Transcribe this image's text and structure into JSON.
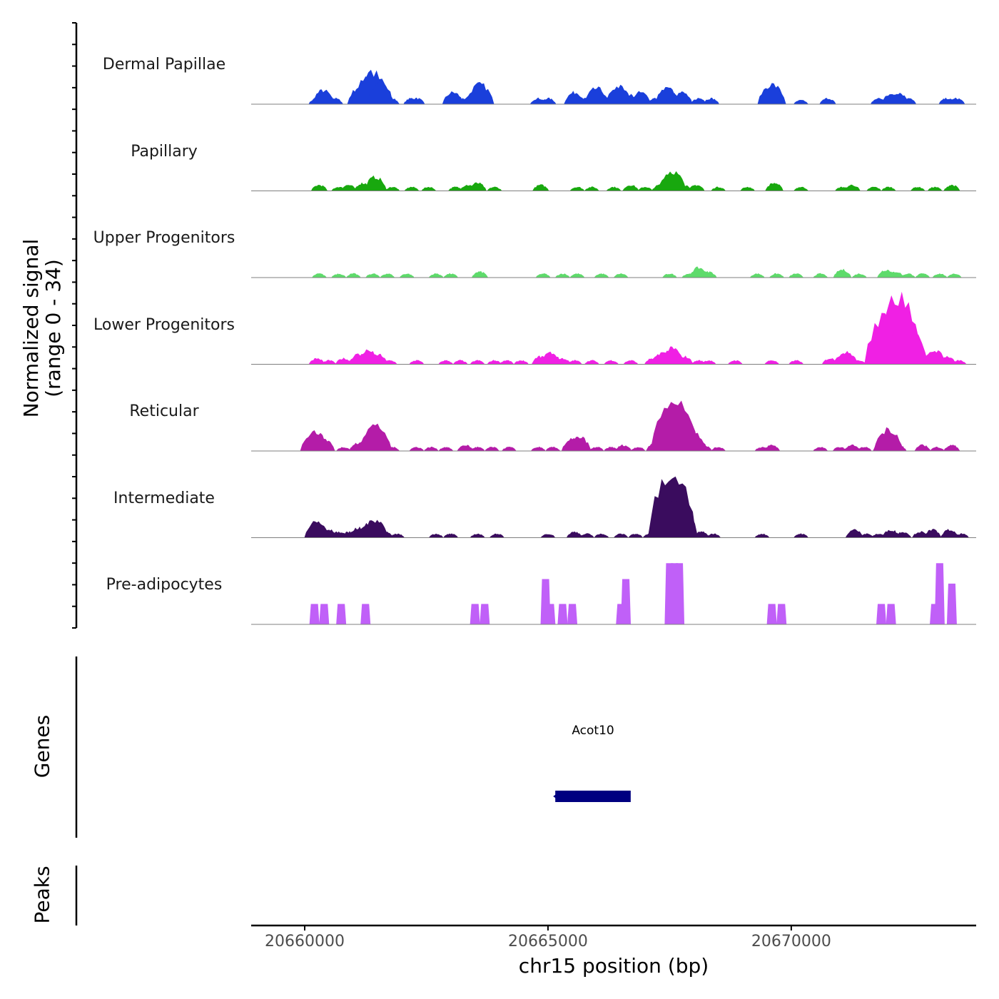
{
  "chart_data": {
    "type": "area",
    "title": "",
    "xlabel": "chr15 position (bp)",
    "ylabel": "Normalized signal",
    "ylabel_range": "(range 0 - 34)",
    "ylim": [
      0,
      34
    ],
    "xlim": [
      20658900,
      20673800
    ],
    "x_ticks": [
      20660000,
      20665000,
      20670000
    ],
    "x_tick_labels": [
      "20660000",
      "20665000",
      "20670000"
    ],
    "tracks": [
      {
        "name": "Dermal Papillae",
        "color": "#1A3FDB",
        "peaks": [
          [
            20660250,
            3
          ],
          [
            20660380,
            7
          ],
          [
            20660620,
            3
          ],
          [
            20661150,
            9
          ],
          [
            20661300,
            13
          ],
          [
            20661420,
            16
          ],
          [
            20661550,
            10
          ],
          [
            20661780,
            3
          ],
          [
            20662200,
            3
          ],
          [
            20662300,
            3
          ],
          [
            20663050,
            6
          ],
          [
            20663250,
            3
          ],
          [
            20663450,
            5
          ],
          [
            20663600,
            10
          ],
          [
            20664800,
            3
          ],
          [
            20665000,
            3
          ],
          [
            20665550,
            6
          ],
          [
            20665800,
            3
          ],
          [
            20666000,
            8
          ],
          [
            20666250,
            3
          ],
          [
            20666450,
            9
          ],
          [
            20666650,
            5
          ],
          [
            20666900,
            6
          ],
          [
            20667200,
            3
          ],
          [
            20667450,
            8
          ],
          [
            20667600,
            5
          ],
          [
            20667750,
            6
          ],
          [
            20668100,
            3
          ],
          [
            20668350,
            3
          ],
          [
            20669600,
            10
          ],
          [
            20670200,
            2
          ],
          [
            20670750,
            3
          ],
          [
            20671800,
            3
          ],
          [
            20672050,
            5
          ],
          [
            20672200,
            6
          ],
          [
            20672400,
            3
          ],
          [
            20673200,
            3
          ],
          [
            20673400,
            3
          ]
        ]
      },
      {
        "name": "Papillary",
        "color": "#18A80E",
        "peaks": [
          [
            20660300,
            3
          ],
          [
            20660700,
            2
          ],
          [
            20660900,
            3
          ],
          [
            20661200,
            4
          ],
          [
            20661450,
            7
          ],
          [
            20661800,
            2
          ],
          [
            20662200,
            2
          ],
          [
            20662550,
            2
          ],
          [
            20663100,
            2
          ],
          [
            20663350,
            3
          ],
          [
            20663550,
            4
          ],
          [
            20663900,
            2
          ],
          [
            20664850,
            3
          ],
          [
            20665600,
            2
          ],
          [
            20665900,
            2
          ],
          [
            20666350,
            2
          ],
          [
            20666700,
            3
          ],
          [
            20667000,
            2
          ],
          [
            20667300,
            3
          ],
          [
            20667550,
            10
          ],
          [
            20667800,
            3
          ],
          [
            20668050,
            3
          ],
          [
            20668500,
            2
          ],
          [
            20669100,
            2
          ],
          [
            20669650,
            4
          ],
          [
            20670200,
            2
          ],
          [
            20671050,
            2
          ],
          [
            20671250,
            3
          ],
          [
            20671700,
            2
          ],
          [
            20672000,
            2
          ],
          [
            20672600,
            2
          ],
          [
            20672950,
            2
          ],
          [
            20673300,
            3
          ]
        ]
      },
      {
        "name": "Upper Progenitors",
        "color": "#5EDB6B",
        "peaks": [
          [
            20660300,
            2
          ],
          [
            20660700,
            2
          ],
          [
            20661000,
            2
          ],
          [
            20661400,
            2
          ],
          [
            20661700,
            2
          ],
          [
            20662100,
            2
          ],
          [
            20662700,
            2
          ],
          [
            20663000,
            2
          ],
          [
            20663600,
            3
          ],
          [
            20664900,
            2
          ],
          [
            20665300,
            2
          ],
          [
            20665600,
            2
          ],
          [
            20666100,
            2
          ],
          [
            20666500,
            2
          ],
          [
            20667500,
            2
          ],
          [
            20667900,
            2
          ],
          [
            20668100,
            5
          ],
          [
            20668300,
            3
          ],
          [
            20669300,
            2
          ],
          [
            20669700,
            2
          ],
          [
            20670100,
            2
          ],
          [
            20670600,
            2
          ],
          [
            20671050,
            4
          ],
          [
            20671400,
            2
          ],
          [
            20671950,
            4
          ],
          [
            20672150,
            3
          ],
          [
            20672400,
            2
          ],
          [
            20672700,
            2
          ],
          [
            20673050,
            2
          ],
          [
            20673350,
            2
          ]
        ]
      },
      {
        "name": "Lower Progenitors",
        "color": "#F020E4",
        "peaks": [
          [
            20660250,
            3
          ],
          [
            20660500,
            2
          ],
          [
            20660800,
            3
          ],
          [
            20661100,
            5
          ],
          [
            20661300,
            7
          ],
          [
            20661500,
            5
          ],
          [
            20661750,
            2
          ],
          [
            20662300,
            2
          ],
          [
            20662900,
            2
          ],
          [
            20663200,
            2
          ],
          [
            20663550,
            2
          ],
          [
            20663900,
            2
          ],
          [
            20664150,
            2
          ],
          [
            20664450,
            2
          ],
          [
            20664850,
            4
          ],
          [
            20665050,
            6
          ],
          [
            20665300,
            3
          ],
          [
            20665550,
            2
          ],
          [
            20665900,
            2
          ],
          [
            20666300,
            2
          ],
          [
            20666700,
            2
          ],
          [
            20667150,
            3
          ],
          [
            20667350,
            6
          ],
          [
            20667550,
            8
          ],
          [
            20667800,
            4
          ],
          [
            20668100,
            2
          ],
          [
            20668300,
            2
          ],
          [
            20668850,
            2
          ],
          [
            20669600,
            2
          ],
          [
            20670100,
            2
          ],
          [
            20670800,
            3
          ],
          [
            20671050,
            5
          ],
          [
            20671150,
            6
          ],
          [
            20671400,
            2
          ],
          [
            20672000,
            26
          ],
          [
            20672200,
            34
          ],
          [
            20672350,
            20
          ],
          [
            20672700,
            4
          ],
          [
            20672950,
            7
          ],
          [
            20673200,
            4
          ],
          [
            20673450,
            2
          ]
        ]
      },
      {
        "name": "Reticular",
        "color": "#B41CA8",
        "peaks": [
          [
            20660200,
            10
          ],
          [
            20660400,
            6
          ],
          [
            20660800,
            2
          ],
          [
            20661100,
            4
          ],
          [
            20661300,
            7
          ],
          [
            20661450,
            13
          ],
          [
            20661800,
            2
          ],
          [
            20662300,
            2
          ],
          [
            20662600,
            2
          ],
          [
            20662900,
            2
          ],
          [
            20663300,
            3
          ],
          [
            20663550,
            2
          ],
          [
            20663850,
            2
          ],
          [
            20664200,
            2
          ],
          [
            20664800,
            2
          ],
          [
            20665100,
            2
          ],
          [
            20665500,
            6
          ],
          [
            20665650,
            7
          ],
          [
            20666000,
            2
          ],
          [
            20666300,
            2
          ],
          [
            20666550,
            3
          ],
          [
            20666850,
            2
          ],
          [
            20667200,
            4
          ],
          [
            20667450,
            5
          ],
          [
            20667600,
            25
          ],
          [
            20667850,
            8
          ],
          [
            20668000,
            9
          ],
          [
            20668200,
            3
          ],
          [
            20668500,
            2
          ],
          [
            20669400,
            2
          ],
          [
            20669600,
            3
          ],
          [
            20670600,
            2
          ],
          [
            20671000,
            2
          ],
          [
            20671250,
            3
          ],
          [
            20671500,
            2
          ],
          [
            20671900,
            6
          ],
          [
            20672000,
            11
          ],
          [
            20672200,
            3
          ],
          [
            20672700,
            3
          ],
          [
            20673000,
            2
          ],
          [
            20673300,
            3
          ]
        ]
      },
      {
        "name": "Intermediate",
        "color": "#3A0C5E",
        "peaks": [
          [
            20660250,
            8
          ],
          [
            20660500,
            4
          ],
          [
            20660700,
            3
          ],
          [
            20660900,
            3
          ],
          [
            20661100,
            5
          ],
          [
            20661300,
            7
          ],
          [
            20661450,
            9
          ],
          [
            20661650,
            3
          ],
          [
            20661900,
            2
          ],
          [
            20662700,
            2
          ],
          [
            20663000,
            2
          ],
          [
            20663550,
            2
          ],
          [
            20663950,
            2
          ],
          [
            20665000,
            2
          ],
          [
            20665550,
            3
          ],
          [
            20665800,
            2
          ],
          [
            20666100,
            2
          ],
          [
            20666500,
            2
          ],
          [
            20666800,
            2
          ],
          [
            20667100,
            2
          ],
          [
            20667450,
            16
          ],
          [
            20667550,
            34
          ],
          [
            20667650,
            18
          ],
          [
            20667900,
            4
          ],
          [
            20668150,
            3
          ],
          [
            20668400,
            2
          ],
          [
            20669400,
            2
          ],
          [
            20670200,
            2
          ],
          [
            20671300,
            4
          ],
          [
            20671550,
            2
          ],
          [
            20671800,
            2
          ],
          [
            20672050,
            4
          ],
          [
            20672300,
            3
          ],
          [
            20672650,
            3
          ],
          [
            20672900,
            4
          ],
          [
            20673250,
            4
          ],
          [
            20673500,
            2
          ]
        ]
      },
      {
        "name": "Pre-adipocytes",
        "color": "#C060F8",
        "peaks": [
          [
            20660200,
            9
          ],
          [
            20660400,
            9
          ],
          [
            20660750,
            9
          ],
          [
            20661250,
            9
          ],
          [
            20663500,
            9
          ],
          [
            20663700,
            9
          ],
          [
            20664950,
            20
          ],
          [
            20665050,
            9
          ],
          [
            20665300,
            9
          ],
          [
            20665500,
            9
          ],
          [
            20666500,
            9
          ],
          [
            20666600,
            20
          ],
          [
            20667500,
            27
          ],
          [
            20667600,
            27
          ],
          [
            20667700,
            27
          ],
          [
            20669600,
            9
          ],
          [
            20669800,
            9
          ],
          [
            20671850,
            9
          ],
          [
            20672050,
            9
          ],
          [
            20672950,
            9
          ],
          [
            20673050,
            27
          ],
          [
            20673300,
            18
          ]
        ]
      }
    ],
    "genes": [
      {
        "name": "Acot10",
        "start": 20665150,
        "end": 20666700,
        "strand": "-",
        "color": "#000080"
      }
    ],
    "genes_label": "Genes",
    "peaks_label": "Peaks"
  }
}
